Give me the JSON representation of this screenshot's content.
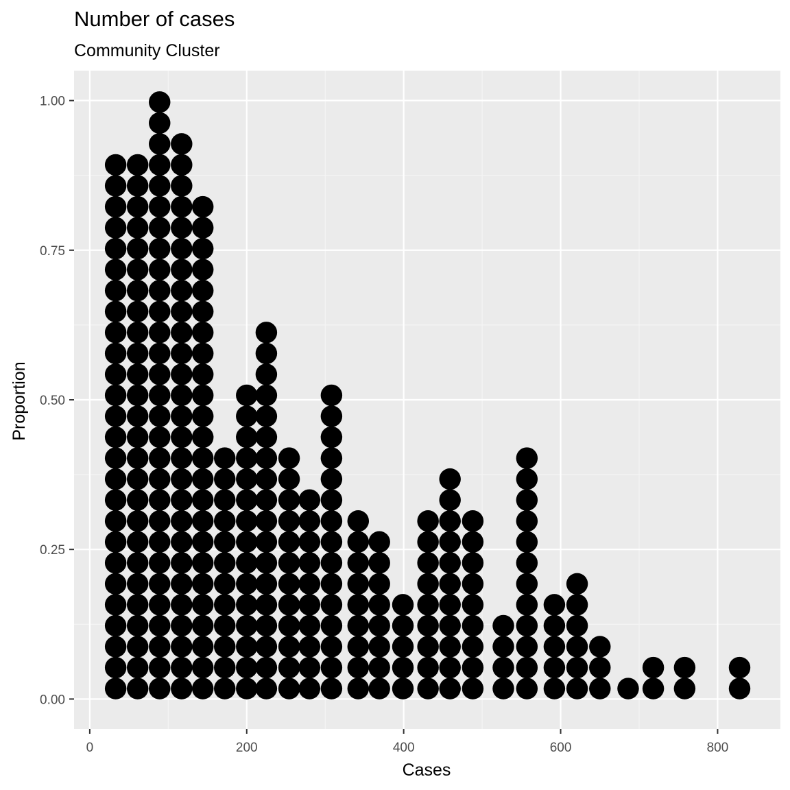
{
  "title": "Number of cases",
  "subtitle": "Community Cluster",
  "colors": {
    "panel_background": "#EBEBEB",
    "grid_major": "#FFFFFF",
    "grid_minor": "#F5F5F5",
    "dot": "#000000",
    "tick_text": "#4D4D4D"
  },
  "chart_data": {
    "type": "dotplot",
    "title": "Number of cases",
    "subtitle": "Community Cluster",
    "xlabel": "Cases",
    "ylabel": "Proportion",
    "xlim": [
      -20,
      880
    ],
    "ylim": [
      -0.05,
      1.05
    ],
    "x_ticks": [
      0,
      200,
      400,
      600,
      800
    ],
    "x_tick_labels": [
      "0",
      "200",
      "400",
      "600",
      "800"
    ],
    "y_ticks": [
      0.0,
      0.25,
      0.5,
      0.75,
      1.0
    ],
    "y_tick_labels": [
      "0.00",
      "0.25",
      "0.50",
      "0.75",
      "1.00"
    ],
    "grid": true,
    "stack_unit": 0.035,
    "stacks": [
      {
        "x": 33,
        "count": 26
      },
      {
        "x": 61,
        "count": 26
      },
      {
        "x": 89,
        "count": 29
      },
      {
        "x": 117,
        "count": 27
      },
      {
        "x": 144,
        "count": 24
      },
      {
        "x": 172,
        "count": 12
      },
      {
        "x": 200,
        "count": 15
      },
      {
        "x": 225,
        "count": 18
      },
      {
        "x": 254,
        "count": 12
      },
      {
        "x": 280,
        "count": 10
      },
      {
        "x": 308,
        "count": 15
      },
      {
        "x": 342,
        "count": 9
      },
      {
        "x": 369,
        "count": 8
      },
      {
        "x": 399,
        "count": 5
      },
      {
        "x": 431,
        "count": 9
      },
      {
        "x": 459,
        "count": 11
      },
      {
        "x": 488,
        "count": 9
      },
      {
        "x": 527,
        "count": 4
      },
      {
        "x": 557,
        "count": 12
      },
      {
        "x": 592,
        "count": 5
      },
      {
        "x": 621,
        "count": 6
      },
      {
        "x": 650,
        "count": 3
      },
      {
        "x": 686,
        "count": 1
      },
      {
        "x": 718,
        "count": 2
      },
      {
        "x": 758,
        "count": 2
      },
      {
        "x": 828,
        "count": 2
      }
    ]
  }
}
